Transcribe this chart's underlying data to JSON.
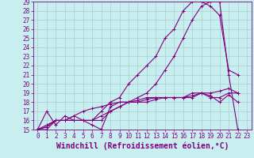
{
  "title": "",
  "xlabel": "Windchill (Refroidissement éolien,°C)",
  "ylabel": "",
  "background_color": "#c8eef0",
  "line_color": "#800080",
  "xlim": [
    -0.5,
    23.5
  ],
  "ylim": [
    15,
    29
  ],
  "xticks": [
    0,
    1,
    2,
    3,
    4,
    5,
    6,
    7,
    8,
    9,
    10,
    11,
    12,
    13,
    14,
    15,
    16,
    17,
    18,
    19,
    20,
    21,
    22,
    23
  ],
  "yticks": [
    15,
    16,
    17,
    18,
    19,
    20,
    21,
    22,
    23,
    24,
    25,
    26,
    27,
    28,
    29
  ],
  "series": [
    [
      15,
      17,
      15.5,
      16.5,
      16,
      16,
      15.5,
      15,
      17.5,
      18,
      18,
      18,
      18,
      18.3,
      18.5,
      18.5,
      18.5,
      18.5,
      19,
      18.5,
      18.5,
      19,
      19
    ],
    [
      15,
      15.5,
      16,
      16,
      16.5,
      17,
      17.3,
      17.5,
      17.8,
      18,
      18,
      18.2,
      18.5,
      18.5,
      18.5,
      18.5,
      18.5,
      19,
      19,
      19,
      19.2,
      19.5,
      19
    ],
    [
      15,
      15.3,
      16,
      16,
      16,
      16,
      16,
      16,
      17,
      17.5,
      18,
      18,
      18.3,
      18.5,
      18.5,
      18.5,
      18.5,
      18.7,
      19,
      18.7,
      18,
      18.8,
      18
    ],
    [
      15,
      15.3,
      16,
      16,
      16,
      16,
      16,
      17,
      18,
      18.5,
      20,
      21,
      22,
      23,
      25,
      26,
      28,
      29,
      29,
      28.5,
      27.5,
      21.5,
      21
    ],
    [
      15,
      15,
      16,
      16,
      16.5,
      16,
      16,
      16.5,
      17,
      17.5,
      18,
      18.5,
      19,
      20,
      21.5,
      23,
      25,
      27,
      28.5,
      29,
      29,
      21,
      15
    ]
  ],
  "grid_color": "#a0c8c8",
  "tick_fontsize": 5.5,
  "xlabel_fontsize": 7,
  "marker": "+"
}
